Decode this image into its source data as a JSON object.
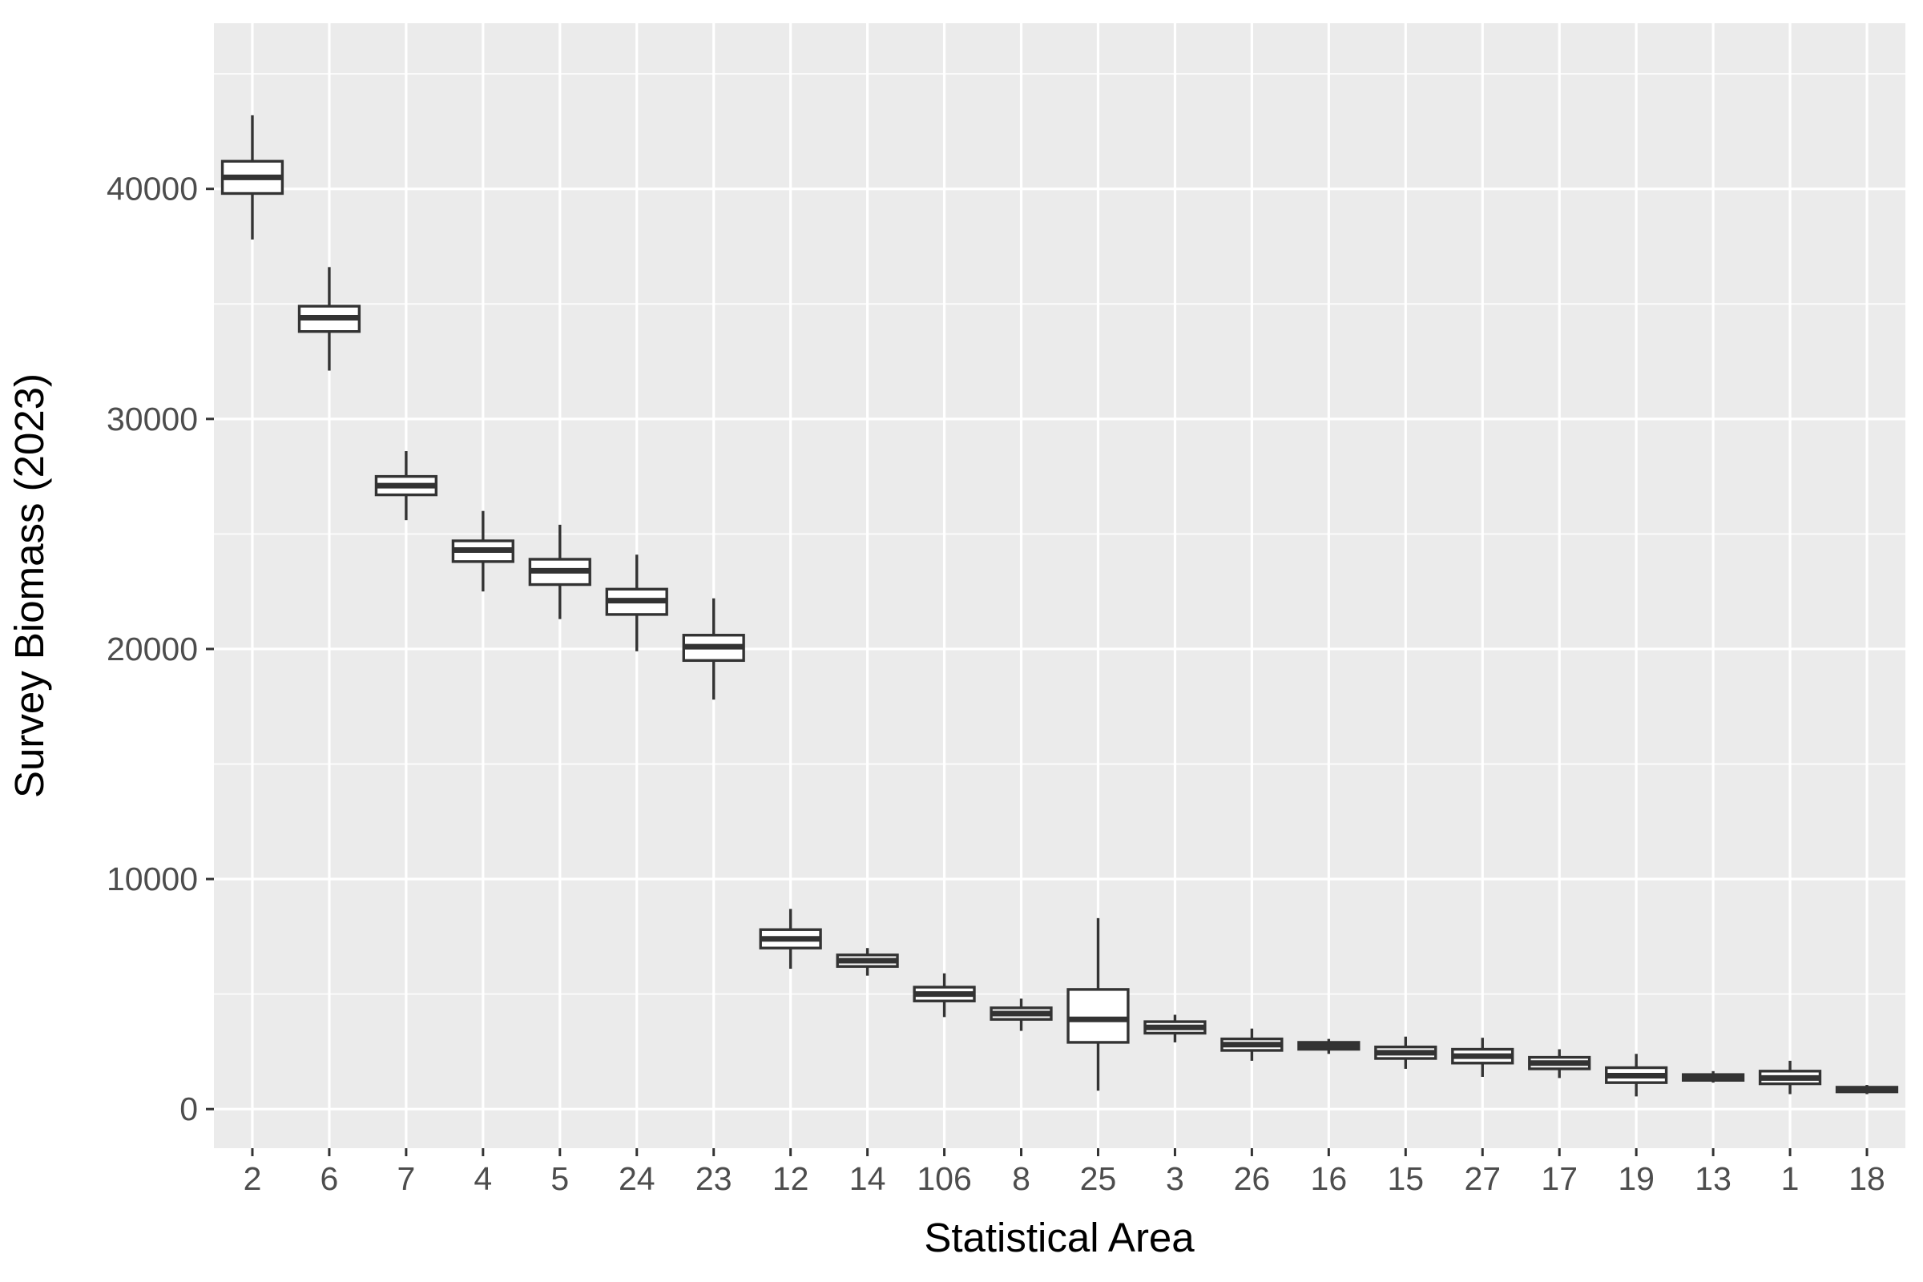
{
  "chart_data": {
    "type": "boxplot",
    "title": "",
    "xlabel": "Statistical Area",
    "ylabel": "Survey Biomass (2023)",
    "ylim": [
      -1700,
      47200
    ],
    "yticks": [
      0,
      10000,
      20000,
      30000,
      40000
    ],
    "grid": true,
    "legend": "none",
    "colors": {
      "panel_background": "#ebebeb",
      "grid_line": "#ffffff",
      "box_outline": "#333333",
      "box_fill": "#ffffff",
      "tick_label": "#4d4d4d",
      "axis_title": "#000000"
    },
    "categories": [
      "2",
      "6",
      "7",
      "4",
      "5",
      "24",
      "23",
      "12",
      "14",
      "106",
      "8",
      "25",
      "3",
      "26",
      "16",
      "15",
      "27",
      "17",
      "19",
      "13",
      "1",
      "18"
    ],
    "boxes": [
      {
        "area": "2",
        "min": 37800,
        "q1": 39800,
        "median": 40500,
        "q3": 41200,
        "max": 43200
      },
      {
        "area": "6",
        "min": 32100,
        "q1": 33800,
        "median": 34400,
        "q3": 34900,
        "max": 36600
      },
      {
        "area": "7",
        "min": 25600,
        "q1": 26700,
        "median": 27100,
        "q3": 27500,
        "max": 28600
      },
      {
        "area": "4",
        "min": 22500,
        "q1": 23800,
        "median": 24300,
        "q3": 24700,
        "max": 26000
      },
      {
        "area": "5",
        "min": 21300,
        "q1": 22800,
        "median": 23400,
        "q3": 23900,
        "max": 25400
      },
      {
        "area": "24",
        "min": 19900,
        "q1": 21500,
        "median": 22100,
        "q3": 22600,
        "max": 24100
      },
      {
        "area": "23",
        "min": 17800,
        "q1": 19500,
        "median": 20100,
        "q3": 20600,
        "max": 22200
      },
      {
        "area": "12",
        "min": 6100,
        "q1": 7000,
        "median": 7400,
        "q3": 7800,
        "max": 8700
      },
      {
        "area": "14",
        "min": 5800,
        "q1": 6200,
        "median": 6450,
        "q3": 6700,
        "max": 7000
      },
      {
        "area": "106",
        "min": 4000,
        "q1": 4700,
        "median": 5000,
        "q3": 5300,
        "max": 5900
      },
      {
        "area": "8",
        "min": 3400,
        "q1": 3900,
        "median": 4150,
        "q3": 4400,
        "max": 4800
      },
      {
        "area": "25",
        "min": 800,
        "q1": 2900,
        "median": 3900,
        "q3": 5200,
        "max": 8300
      },
      {
        "area": "3",
        "min": 2900,
        "q1": 3300,
        "median": 3550,
        "q3": 3800,
        "max": 4100
      },
      {
        "area": "26",
        "min": 2100,
        "q1": 2550,
        "median": 2800,
        "q3": 3050,
        "max": 3500
      },
      {
        "area": "16",
        "min": 2400,
        "q1": 2600,
        "median": 2750,
        "q3": 2900,
        "max": 3050
      },
      {
        "area": "15",
        "min": 1750,
        "q1": 2200,
        "median": 2450,
        "q3": 2700,
        "max": 3150
      },
      {
        "area": "27",
        "min": 1400,
        "q1": 2000,
        "median": 2300,
        "q3": 2600,
        "max": 3100
      },
      {
        "area": "17",
        "min": 1350,
        "q1": 1750,
        "median": 2000,
        "q3": 2250,
        "max": 2600
      },
      {
        "area": "19",
        "min": 550,
        "q1": 1150,
        "median": 1450,
        "q3": 1800,
        "max": 2400
      },
      {
        "area": "13",
        "min": 1150,
        "q1": 1250,
        "median": 1350,
        "q3": 1500,
        "max": 1650
      },
      {
        "area": "1",
        "min": 650,
        "q1": 1100,
        "median": 1350,
        "q3": 1650,
        "max": 2100
      },
      {
        "area": "18",
        "min": 650,
        "q1": 750,
        "median": 850,
        "q3": 950,
        "max": 1050
      }
    ]
  }
}
